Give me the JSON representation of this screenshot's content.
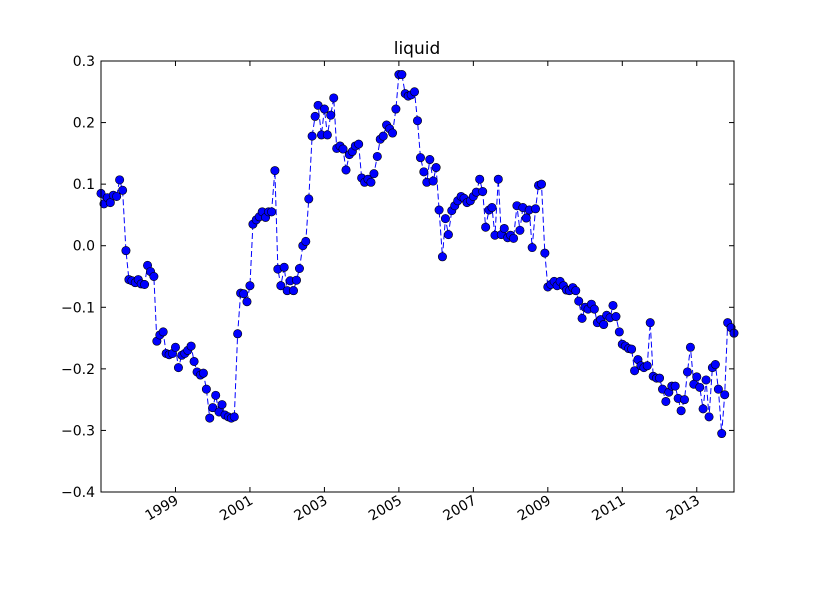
{
  "chart_data": {
    "type": "line",
    "title": "liquid",
    "xlabel": "",
    "ylabel": "",
    "xlim": [
      1997.0,
      2014.0
    ],
    "ylim": [
      -0.4,
      0.3
    ],
    "x_ticks": [
      {
        "value": 1999,
        "label": "1999"
      },
      {
        "value": 2001,
        "label": "2001"
      },
      {
        "value": 2003,
        "label": "2003"
      },
      {
        "value": 2005,
        "label": "2005"
      },
      {
        "value": 2007,
        "label": "2007"
      },
      {
        "value": 2009,
        "label": "2009"
      },
      {
        "value": 2011,
        "label": "2011"
      },
      {
        "value": 2013,
        "label": "2013"
      }
    ],
    "y_ticks": [
      {
        "value": 0.3,
        "label": "0.3"
      },
      {
        "value": 0.2,
        "label": "0.2"
      },
      {
        "value": 0.1,
        "label": "0.1"
      },
      {
        "value": 0.0,
        "label": "0.0"
      },
      {
        "value": -0.1,
        "label": "−0.1"
      },
      {
        "value": -0.2,
        "label": "−0.2"
      },
      {
        "value": -0.3,
        "label": "−0.3"
      },
      {
        "value": -0.4,
        "label": "−0.4"
      }
    ],
    "grid": false,
    "series": [
      {
        "color": "#0000ff",
        "line_style": "dashed",
        "marker": "circle",
        "x": [
          1997.0,
          1997.08,
          1997.17,
          1997.25,
          1997.33,
          1997.42,
          1997.5,
          1997.58,
          1997.67,
          1997.75,
          1997.83,
          1997.92,
          1998.0,
          1998.08,
          1998.17,
          1998.25,
          1998.33,
          1998.42,
          1998.5,
          1998.58,
          1998.67,
          1998.75,
          1998.83,
          1998.92,
          1999.0,
          1999.08,
          1999.17,
          1999.25,
          1999.33,
          1999.42,
          1999.5,
          1999.58,
          1999.67,
          1999.75,
          1999.83,
          1999.92,
          2000.0,
          2000.08,
          2000.17,
          2000.25,
          2000.33,
          2000.42,
          2000.5,
          2000.58,
          2000.67,
          2000.75,
          2000.83,
          2000.92,
          2001.0,
          2001.08,
          2001.17,
          2001.25,
          2001.33,
          2001.42,
          2001.5,
          2001.58,
          2001.67,
          2001.75,
          2001.83,
          2001.92,
          2002.0,
          2002.08,
          2002.17,
          2002.25,
          2002.33,
          2002.42,
          2002.5,
          2002.58,
          2002.67,
          2002.75,
          2002.83,
          2002.92,
          2003.0,
          2003.08,
          2003.17,
          2003.25,
          2003.33,
          2003.42,
          2003.5,
          2003.58,
          2003.67,
          2003.75,
          2003.83,
          2003.92,
          2004.0,
          2004.08,
          2004.17,
          2004.25,
          2004.33,
          2004.42,
          2004.5,
          2004.58,
          2004.67,
          2004.75,
          2004.83,
          2004.92,
          2005.0,
          2005.08,
          2005.17,
          2005.25,
          2005.33,
          2005.42,
          2005.5,
          2005.58,
          2005.67,
          2005.75,
          2005.83,
          2005.92,
          2006.0,
          2006.08,
          2006.17,
          2006.25,
          2006.33,
          2006.42,
          2006.5,
          2006.58,
          2006.67,
          2006.75,
          2006.83,
          2006.92,
          2007.0,
          2007.08,
          2007.17,
          2007.25,
          2007.33,
          2007.42,
          2007.5,
          2007.58,
          2007.67,
          2007.75,
          2007.83,
          2007.92,
          2008.0,
          2008.08,
          2008.17,
          2008.25,
          2008.33,
          2008.42,
          2008.5,
          2008.58,
          2008.67,
          2008.75,
          2008.83,
          2008.92,
          2009.0,
          2009.08,
          2009.17,
          2009.25,
          2009.33,
          2009.42,
          2009.5,
          2009.58,
          2009.67,
          2009.75,
          2009.83,
          2009.92,
          2010.0,
          2010.08,
          2010.17,
          2010.25,
          2010.33,
          2010.42,
          2010.5,
          2010.58,
          2010.67,
          2010.75,
          2010.83,
          2010.92,
          2011.0,
          2011.08,
          2011.17,
          2011.25,
          2011.33,
          2011.42,
          2011.5,
          2011.58,
          2011.67,
          2011.75,
          2011.83,
          2011.92,
          2012.0,
          2012.08,
          2012.17,
          2012.25,
          2012.33,
          2012.42,
          2012.5,
          2012.58,
          2012.67,
          2012.75,
          2012.83,
          2012.92,
          2013.0,
          2013.08,
          2013.17,
          2013.25,
          2013.33,
          2013.42,
          2013.5,
          2013.58,
          2013.67,
          2013.75,
          2013.83,
          2013.92,
          2014.0
        ],
        "y": [
          0.085,
          0.068,
          0.078,
          0.07,
          0.082,
          0.08,
          0.107,
          0.09,
          -0.008,
          -0.055,
          -0.057,
          -0.06,
          -0.055,
          -0.062,
          -0.063,
          -0.032,
          -0.042,
          -0.05,
          -0.155,
          -0.145,
          -0.14,
          -0.175,
          -0.177,
          -0.175,
          -0.165,
          -0.198,
          -0.178,
          -0.175,
          -0.17,
          -0.163,
          -0.188,
          -0.205,
          -0.21,
          -0.207,
          -0.233,
          -0.28,
          -0.263,
          -0.243,
          -0.27,
          -0.258,
          -0.275,
          -0.278,
          -0.28,
          -0.278,
          -0.143,
          -0.077,
          -0.078,
          -0.091,
          -0.065,
          0.035,
          0.042,
          0.047,
          0.055,
          0.046,
          0.055,
          0.055,
          0.122,
          -0.038,
          -0.065,
          -0.035,
          -0.073,
          -0.057,
          -0.073,
          -0.056,
          -0.037,
          0.0,
          0.007,
          0.076,
          0.178,
          0.21,
          0.228,
          0.18,
          0.222,
          0.18,
          0.212,
          0.24,
          0.158,
          0.162,
          0.157,
          0.123,
          0.148,
          0.153,
          0.162,
          0.165,
          0.11,
          0.103,
          0.108,
          0.103,
          0.117,
          0.145,
          0.173,
          0.178,
          0.196,
          0.19,
          0.183,
          0.222,
          0.278,
          0.278,
          0.247,
          0.243,
          0.245,
          0.25,
          0.203,
          0.143,
          0.12,
          0.103,
          0.14,
          0.105,
          0.127,
          0.058,
          -0.018,
          0.044,
          0.018,
          0.057,
          0.065,
          0.073,
          0.08,
          0.077,
          0.07,
          0.073,
          0.08,
          0.087,
          0.108,
          0.088,
          0.03,
          0.058,
          0.062,
          0.017,
          0.108,
          0.018,
          0.028,
          0.013,
          0.017,
          0.012,
          0.065,
          0.025,
          0.062,
          0.045,
          0.058,
          -0.003,
          0.06,
          0.098,
          0.1,
          -0.012,
          -0.067,
          -0.063,
          -0.058,
          -0.065,
          -0.058,
          -0.065,
          -0.072,
          -0.073,
          -0.068,
          -0.073,
          -0.09,
          -0.118,
          -0.1,
          -0.103,
          -0.095,
          -0.103,
          -0.125,
          -0.12,
          -0.128,
          -0.113,
          -0.117,
          -0.097,
          -0.115,
          -0.14,
          -0.16,
          -0.163,
          -0.167,
          -0.168,
          -0.203,
          -0.185,
          -0.195,
          -0.198,
          -0.195,
          -0.125,
          -0.212,
          -0.215,
          -0.215,
          -0.233,
          -0.253,
          -0.238,
          -0.228,
          -0.228,
          -0.248,
          -0.268,
          -0.25,
          -0.205,
          -0.165,
          -0.225,
          -0.213,
          -0.23,
          -0.265,
          -0.218,
          -0.278,
          -0.198,
          -0.193,
          -0.233,
          -0.305,
          -0.242,
          -0.125,
          -0.133,
          -0.142
        ]
      }
    ]
  }
}
